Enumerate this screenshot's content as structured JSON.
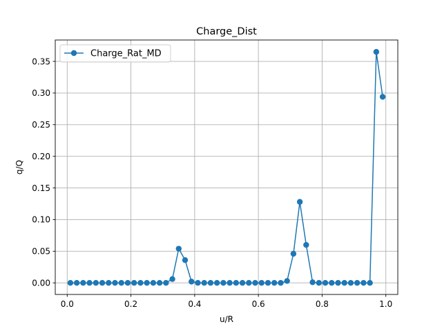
{
  "chart_data": {
    "type": "line",
    "title": "Charge_Dist",
    "xlabel": "u/R",
    "ylabel": "q/Q",
    "xlim": [
      -0.0375,
      1.0375
    ],
    "ylim": [
      -0.0183,
      0.3838
    ],
    "xticks": [
      0.0,
      0.2,
      0.4,
      0.6,
      0.8,
      1.0
    ],
    "xtick_labels": [
      "0.0",
      "0.2",
      "0.4",
      "0.6",
      "0.8",
      "1.0"
    ],
    "yticks": [
      0.0,
      0.05,
      0.1,
      0.15,
      0.2,
      0.25,
      0.3,
      0.35
    ],
    "ytick_labels": [
      "0.00",
      "0.05",
      "0.10",
      "0.15",
      "0.20",
      "0.25",
      "0.30",
      "0.35"
    ],
    "grid": true,
    "legend_position": "upper-left",
    "series": [
      {
        "name": "Charge_Rat_MD",
        "color": "#1f77b4",
        "marker": "circle",
        "x": [
          0.01,
          0.03,
          0.05,
          0.07,
          0.09,
          0.11,
          0.13,
          0.15,
          0.17,
          0.19,
          0.21,
          0.23,
          0.25,
          0.27,
          0.29,
          0.31,
          0.33,
          0.35,
          0.37,
          0.39,
          0.41,
          0.43,
          0.45,
          0.47,
          0.49,
          0.51,
          0.53,
          0.55,
          0.57,
          0.59,
          0.61,
          0.63,
          0.65,
          0.67,
          0.69,
          0.71,
          0.73,
          0.75,
          0.77,
          0.79,
          0.81,
          0.83,
          0.85,
          0.87,
          0.89,
          0.91,
          0.93,
          0.95,
          0.97,
          0.99
        ],
        "y": [
          0,
          0,
          0,
          0,
          0,
          0,
          0,
          0,
          0,
          0,
          0,
          0,
          0,
          0,
          0,
          0,
          0.006,
          0.054,
          0.036,
          0.002,
          0,
          0,
          0,
          0,
          0,
          0,
          0,
          0,
          0,
          0,
          0,
          0,
          0,
          0,
          0.003,
          0.046,
          0.128,
          0.06,
          0.001,
          0,
          0,
          0,
          0,
          0,
          0,
          0,
          0,
          0,
          0.365,
          0.294
        ]
      }
    ]
  }
}
